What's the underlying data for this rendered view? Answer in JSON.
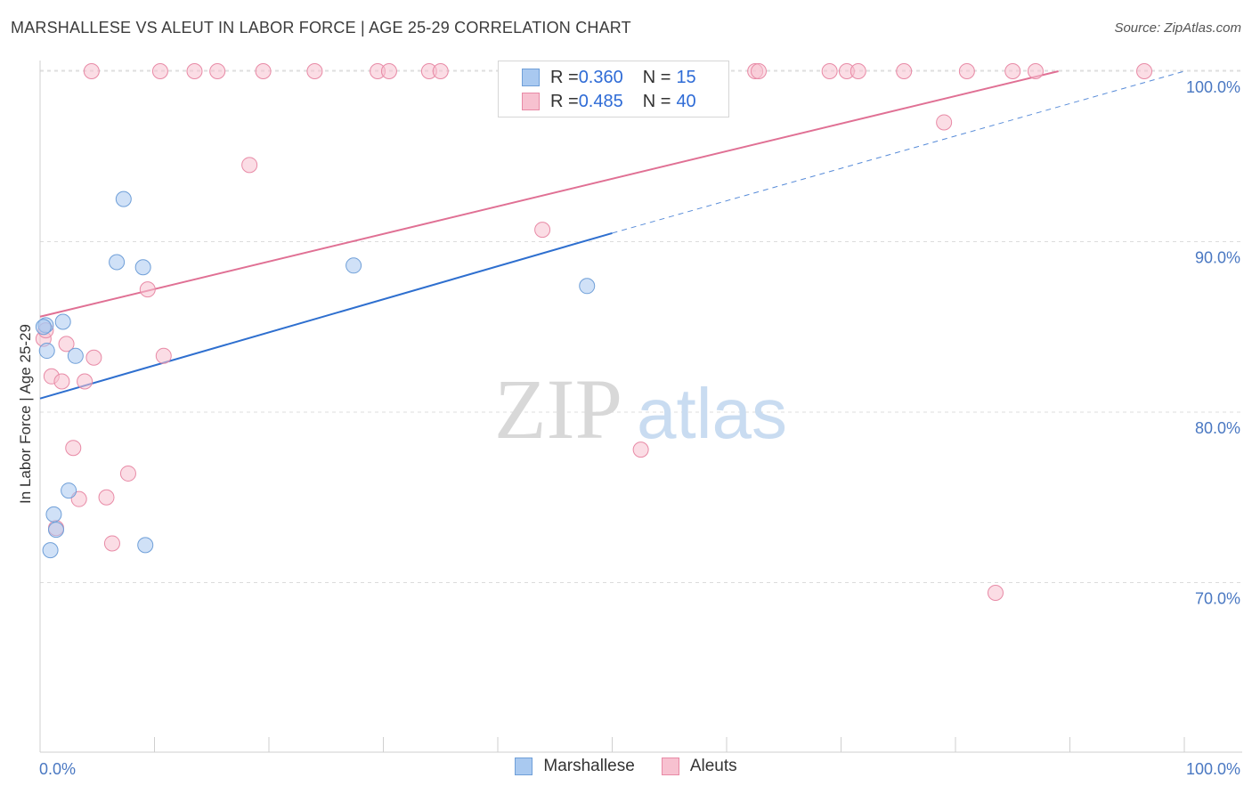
{
  "header": {
    "title": "MARSHALLESE VS ALEUT IN LABOR FORCE | AGE 25-29 CORRELATION CHART",
    "source": "Source: ZipAtlas.com"
  },
  "watermark": {
    "zip": "ZIP",
    "atlas": "atlas"
  },
  "legend": {
    "rows": [
      {
        "r_label": "R = ",
        "r_value": "0.360",
        "n_label": "N = ",
        "n_value": "15",
        "color": "#a9c9f0",
        "stroke": "#6f9fd8"
      },
      {
        "r_label": "R = ",
        "r_value": "0.485",
        "n_label": "N = ",
        "n_value": "40",
        "color": "#f7c1d0",
        "stroke": "#e88aa6"
      }
    ]
  },
  "bottom_legend": {
    "items": [
      "Marshallese",
      "Aleuts"
    ]
  },
  "chart_data": {
    "type": "scatter",
    "title": "MARSHALLESE VS ALEUT IN LABOR FORCE | AGE 25-29 CORRELATION CHART",
    "xlabel": "",
    "ylabel": "In Labor Force | Age 25-29",
    "xlim": [
      0,
      100
    ],
    "ylim": [
      59,
      101
    ],
    "x_tick_labels": [
      "0.0%",
      "100.0%"
    ],
    "y_ticks": [
      70,
      80,
      90,
      100
    ],
    "y_tick_labels": [
      "70.0%",
      "80.0%",
      "90.0%",
      "100.0%"
    ],
    "grid": true,
    "legend_position": "top-center",
    "series": [
      {
        "name": "Marshallese",
        "color": "#a9c9f0",
        "stroke": "#6f9fd8",
        "line_color": "#2e6fcf",
        "points": [
          [
            0.5,
            85.1
          ],
          [
            2.0,
            85.3
          ],
          [
            0.6,
            83.6
          ],
          [
            3.1,
            83.3
          ],
          [
            7.3,
            92.5
          ],
          [
            6.7,
            88.8
          ],
          [
            9.0,
            88.5
          ],
          [
            27.4,
            88.6
          ],
          [
            47.8,
            87.4
          ],
          [
            2.5,
            75.4
          ],
          [
            1.2,
            74.0
          ],
          [
            1.4,
            73.1
          ],
          [
            0.9,
            71.9
          ],
          [
            9.2,
            72.2
          ],
          [
            0.3,
            85.0
          ]
        ],
        "trend": {
          "x": [
            0,
            50
          ],
          "y": [
            80.8,
            90.5
          ]
        },
        "trend_extension": {
          "x": [
            50,
            100
          ],
          "y": [
            90.5,
            100.0
          ]
        }
      },
      {
        "name": "Aleuts",
        "color": "#f7c1d0",
        "stroke": "#e88aa6",
        "line_color": "#e07094",
        "points": [
          [
            4.5,
            100
          ],
          [
            10.5,
            100
          ],
          [
            13.5,
            100
          ],
          [
            15.5,
            100
          ],
          [
            19.5,
            100
          ],
          [
            24.0,
            100
          ],
          [
            29.5,
            100
          ],
          [
            30.5,
            100
          ],
          [
            34.0,
            100
          ],
          [
            35.0,
            100
          ],
          [
            62.5,
            100
          ],
          [
            62.8,
            100
          ],
          [
            69.0,
            100
          ],
          [
            70.5,
            100
          ],
          [
            71.5,
            100
          ],
          [
            75.5,
            100
          ],
          [
            81.0,
            100
          ],
          [
            85.0,
            100
          ],
          [
            87.0,
            100
          ],
          [
            96.5,
            100
          ],
          [
            79.0,
            97.0
          ],
          [
            18.3,
            94.5
          ],
          [
            43.9,
            90.7
          ],
          [
            9.4,
            87.2
          ],
          [
            0.3,
            84.3
          ],
          [
            2.3,
            84.0
          ],
          [
            4.7,
            83.2
          ],
          [
            10.8,
            83.3
          ],
          [
            1.0,
            82.1
          ],
          [
            1.9,
            81.8
          ],
          [
            3.9,
            81.8
          ],
          [
            2.9,
            77.9
          ],
          [
            7.7,
            76.4
          ],
          [
            3.4,
            74.9
          ],
          [
            5.8,
            75.0
          ],
          [
            1.4,
            73.2
          ],
          [
            6.3,
            72.3
          ],
          [
            52.5,
            77.8
          ],
          [
            83.5,
            69.4
          ],
          [
            0.5,
            84.8
          ]
        ],
        "trend": {
          "x": [
            0,
            89
          ],
          "y": [
            85.6,
            100.0
          ]
        }
      }
    ]
  }
}
